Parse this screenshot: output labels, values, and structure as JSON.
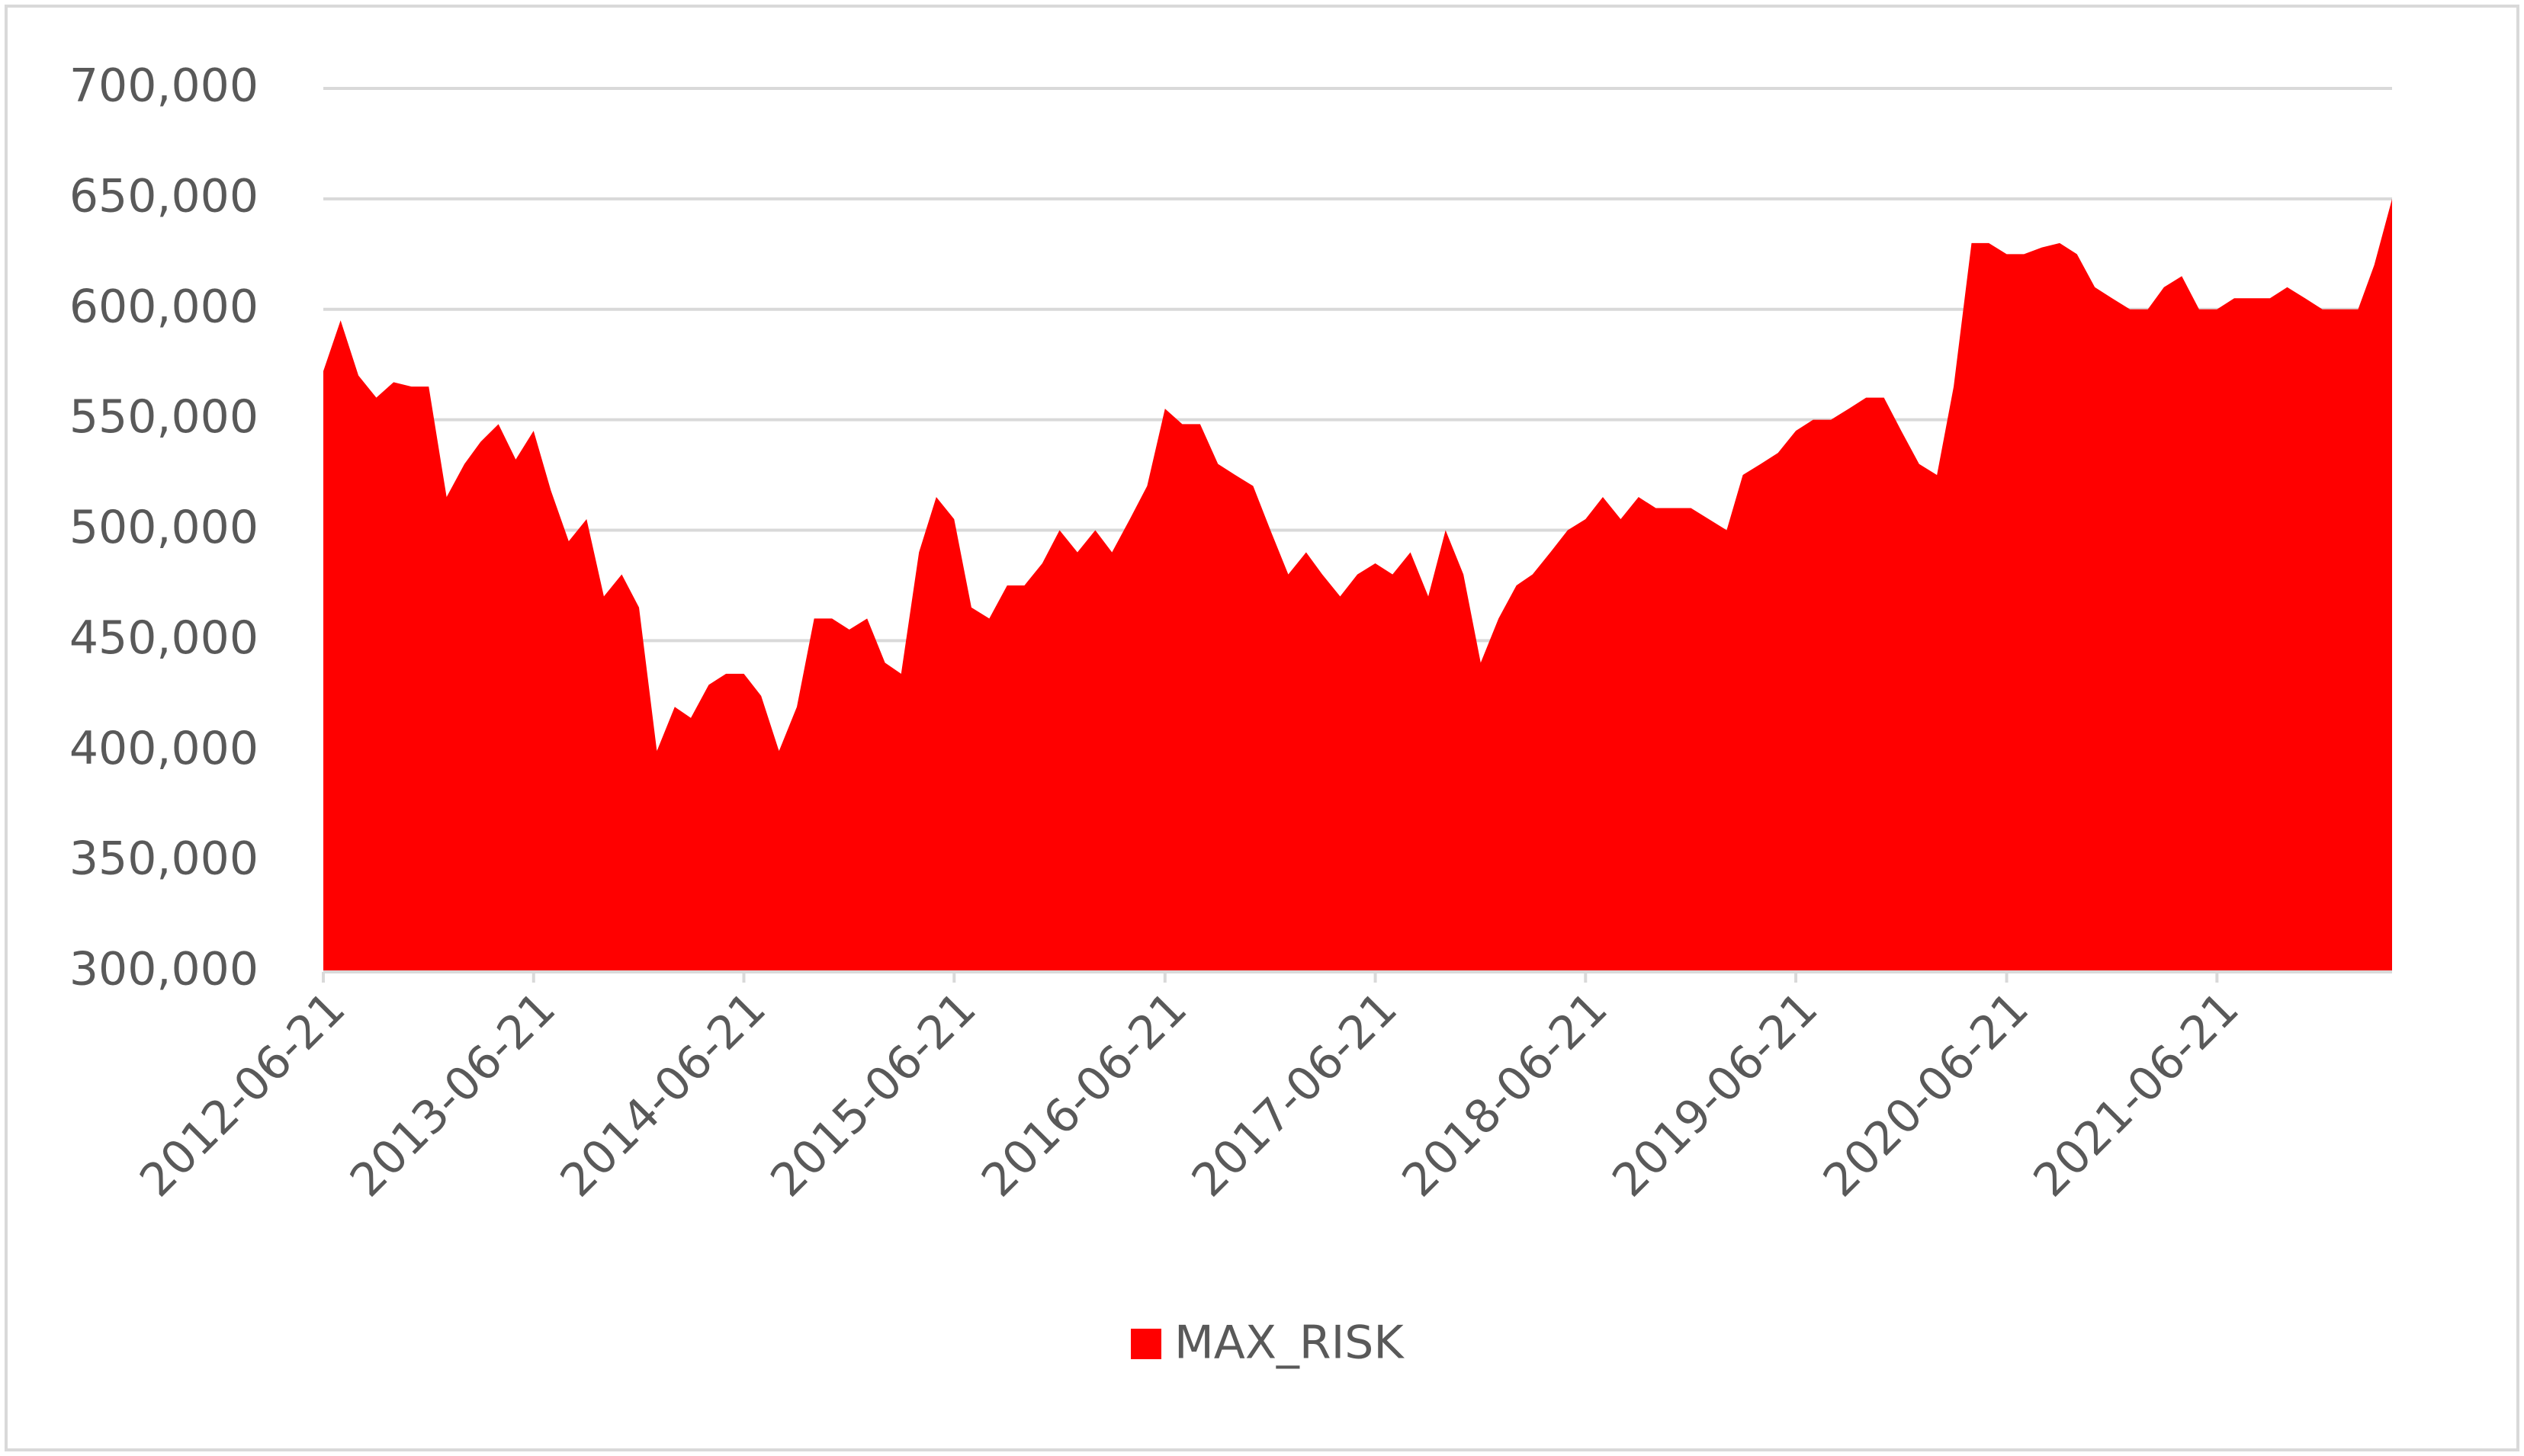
{
  "chart_data": {
    "type": "area",
    "x": [
      "2012-06-21",
      "2012-07-21",
      "2012-08-21",
      "2012-09-21",
      "2012-10-21",
      "2012-11-21",
      "2012-12-21",
      "2013-01-21",
      "2013-02-21",
      "2013-03-21",
      "2013-04-21",
      "2013-05-21",
      "2013-06-21",
      "2013-07-21",
      "2013-08-21",
      "2013-09-21",
      "2013-10-21",
      "2013-11-21",
      "2013-12-21",
      "2014-01-21",
      "2014-02-21",
      "2014-03-21",
      "2014-04-21",
      "2014-05-21",
      "2014-06-21",
      "2014-07-21",
      "2014-08-21",
      "2014-09-21",
      "2014-10-21",
      "2014-11-21",
      "2014-12-21",
      "2015-01-21",
      "2015-02-21",
      "2015-03-21",
      "2015-04-21",
      "2015-05-21",
      "2015-06-21",
      "2015-07-21",
      "2015-08-21",
      "2015-09-21",
      "2015-10-21",
      "2015-11-21",
      "2015-12-21",
      "2016-01-21",
      "2016-02-21",
      "2016-03-21",
      "2016-04-21",
      "2016-05-21",
      "2016-06-21",
      "2016-07-21",
      "2016-08-21",
      "2016-09-21",
      "2016-10-21",
      "2016-11-21",
      "2016-12-21",
      "2017-01-21",
      "2017-02-21",
      "2017-03-21",
      "2017-04-21",
      "2017-05-21",
      "2017-06-21",
      "2017-07-21",
      "2017-08-21",
      "2017-09-21",
      "2017-10-21",
      "2017-11-21",
      "2017-12-21",
      "2018-01-21",
      "2018-02-21",
      "2018-03-21",
      "2018-04-21",
      "2018-05-21",
      "2018-06-21",
      "2018-07-21",
      "2018-08-21",
      "2018-09-21",
      "2018-10-21",
      "2018-11-21",
      "2018-12-21",
      "2019-01-21",
      "2019-02-21",
      "2019-03-21",
      "2019-04-21",
      "2019-05-21",
      "2019-06-21",
      "2019-07-21",
      "2019-08-21",
      "2019-09-21",
      "2019-10-21",
      "2019-11-21",
      "2019-12-21",
      "2020-01-21",
      "2020-02-21",
      "2020-03-21",
      "2020-04-21",
      "2020-05-21",
      "2020-06-21",
      "2020-07-21",
      "2020-08-21",
      "2020-09-21",
      "2020-10-21",
      "2020-11-21",
      "2020-12-21",
      "2021-01-21",
      "2021-02-21",
      "2021-03-21",
      "2021-04-21",
      "2021-05-21",
      "2021-06-21",
      "2021-07-21",
      "2021-08-21",
      "2021-09-21",
      "2021-10-21",
      "2021-11-21",
      "2021-12-21",
      "2022-01-21",
      "2022-02-21",
      "2022-03-21",
      "2022-04-21"
    ],
    "series": [
      {
        "name": "MAX_RISK",
        "color": "#ff0000",
        "values": [
          572000,
          595000,
          570000,
          560000,
          567000,
          565000,
          565000,
          515000,
          530000,
          540000,
          548000,
          532000,
          545000,
          518000,
          495000,
          505000,
          470000,
          480000,
          465000,
          400000,
          420000,
          415000,
          430000,
          435000,
          435000,
          425000,
          400000,
          420000,
          460000,
          460000,
          455000,
          460000,
          440000,
          435000,
          490000,
          515000,
          505000,
          465000,
          460000,
          475000,
          475000,
          485000,
          500000,
          490000,
          500000,
          490000,
          505000,
          520000,
          555000,
          548000,
          548000,
          530000,
          525000,
          520000,
          500000,
          480000,
          490000,
          480000,
          470000,
          480000,
          485000,
          480000,
          490000,
          470000,
          500000,
          480000,
          440000,
          460000,
          475000,
          480000,
          490000,
          500000,
          505000,
          515000,
          505000,
          515000,
          510000,
          510000,
          510000,
          505000,
          500000,
          525000,
          530000,
          535000,
          545000,
          550000,
          550000,
          555000,
          560000,
          560000,
          545000,
          530000,
          525000,
          565000,
          630000,
          630000,
          625000,
          625000,
          628000,
          630000,
          625000,
          610000,
          605000,
          600000,
          600000,
          610000,
          615000,
          600000,
          600000,
          605000,
          605000,
          605000,
          610000,
          605000,
          600000,
          600000,
          600000,
          620000,
          650000
        ]
      }
    ],
    "xlim": [
      "2012-06-21",
      "2022-04-21"
    ],
    "xticks": [
      "2012-06-21",
      "2013-06-21",
      "2014-06-21",
      "2015-06-21",
      "2016-06-21",
      "2017-06-21",
      "2018-06-21",
      "2019-06-21",
      "2020-06-21",
      "2021-06-21"
    ],
    "ylim": [
      300000,
      700000
    ],
    "yticks": [
      {
        "value": 300000,
        "label": "300,000"
      },
      {
        "value": 350000,
        "label": "350,000"
      },
      {
        "value": 400000,
        "label": "400,000"
      },
      {
        "value": 450000,
        "label": "450,000"
      },
      {
        "value": 500000,
        "label": "500,000"
      },
      {
        "value": 550000,
        "label": "550,000"
      },
      {
        "value": 600000,
        "label": "600,000"
      },
      {
        "value": 650000,
        "label": "650,000"
      },
      {
        "value": 700000,
        "label": "700,000"
      }
    ],
    "grid": true,
    "legend": "bottom"
  }
}
